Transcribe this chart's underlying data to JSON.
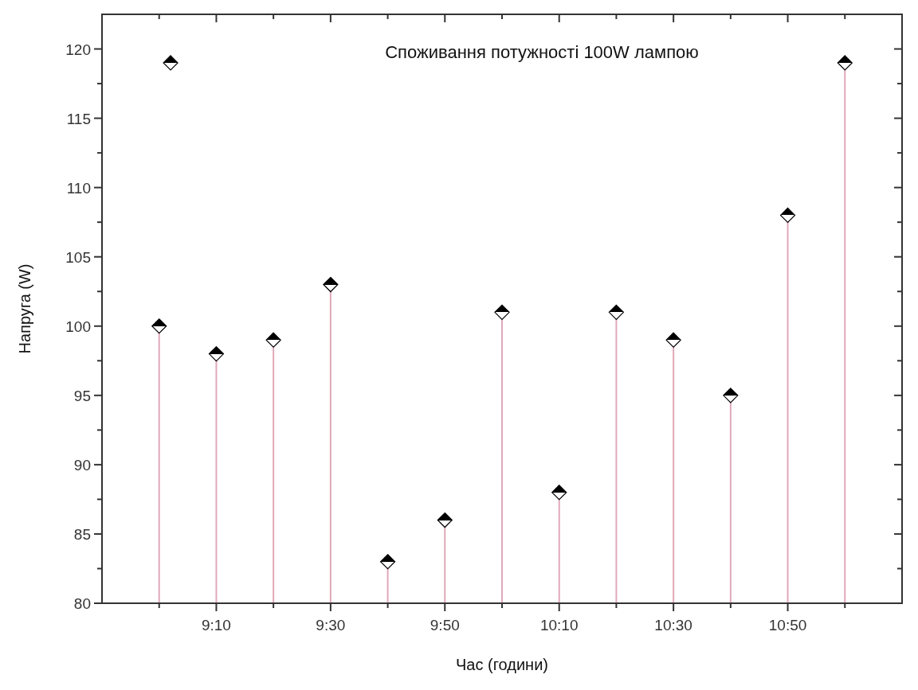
{
  "chart_data": {
    "type": "lollipop",
    "title": "Споживання потужності 100W лампою",
    "xlabel": "Час (години)",
    "ylabel": "Напруга (W)",
    "marker": "diamond",
    "grid": false,
    "xlim": [
      8.8333,
      11.1667
    ],
    "ylim": [
      80,
      122.5
    ],
    "xticks": [
      {
        "value": 9,
        "label": null
      },
      {
        "value": 9.1667,
        "label": "9:10"
      },
      {
        "value": 9.3333,
        "label": null
      },
      {
        "value": 9.5,
        "label": "9:30"
      },
      {
        "value": 9.6667,
        "label": null
      },
      {
        "value": 9.8333,
        "label": "9:50"
      },
      {
        "value": 10,
        "label": null
      },
      {
        "value": 10.1667,
        "label": "10:10"
      },
      {
        "value": 10.3333,
        "label": null
      },
      {
        "value": 10.5,
        "label": "10:30"
      },
      {
        "value": 10.6667,
        "label": null
      },
      {
        "value": 10.8333,
        "label": "10:50"
      },
      {
        "value": 11,
        "label": null
      }
    ],
    "yticks": [
      80,
      {
        "value": 82.5,
        "label": null
      },
      85,
      {
        "value": 87.5,
        "label": null
      },
      90,
      {
        "value": 92.5,
        "label": null
      },
      95,
      {
        "value": 97.5,
        "label": null
      },
      100,
      {
        "value": 102.5,
        "label": null
      },
      105,
      {
        "value": 107.5,
        "label": null
      },
      110,
      {
        "value": 112.5,
        "label": null
      },
      115,
      {
        "value": 117.5,
        "label": null
      },
      120
    ],
    "series": [
      {
        "color": "#000000",
        "x": [
          9,
          9.1667,
          9.3333,
          9.5,
          9.6667,
          9.8333,
          10,
          10.1667,
          10.3333,
          10.5,
          10.6667,
          10.8333,
          11
        ],
        "values": [
          100,
          98,
          99,
          103,
          83,
          86,
          101,
          88,
          101,
          99,
          95,
          108,
          119
        ]
      },
      {
        "type": "scatter",
        "color": "#000000",
        "x": [
          9.0333
        ],
        "values": [
          119
        ]
      }
    ]
  }
}
